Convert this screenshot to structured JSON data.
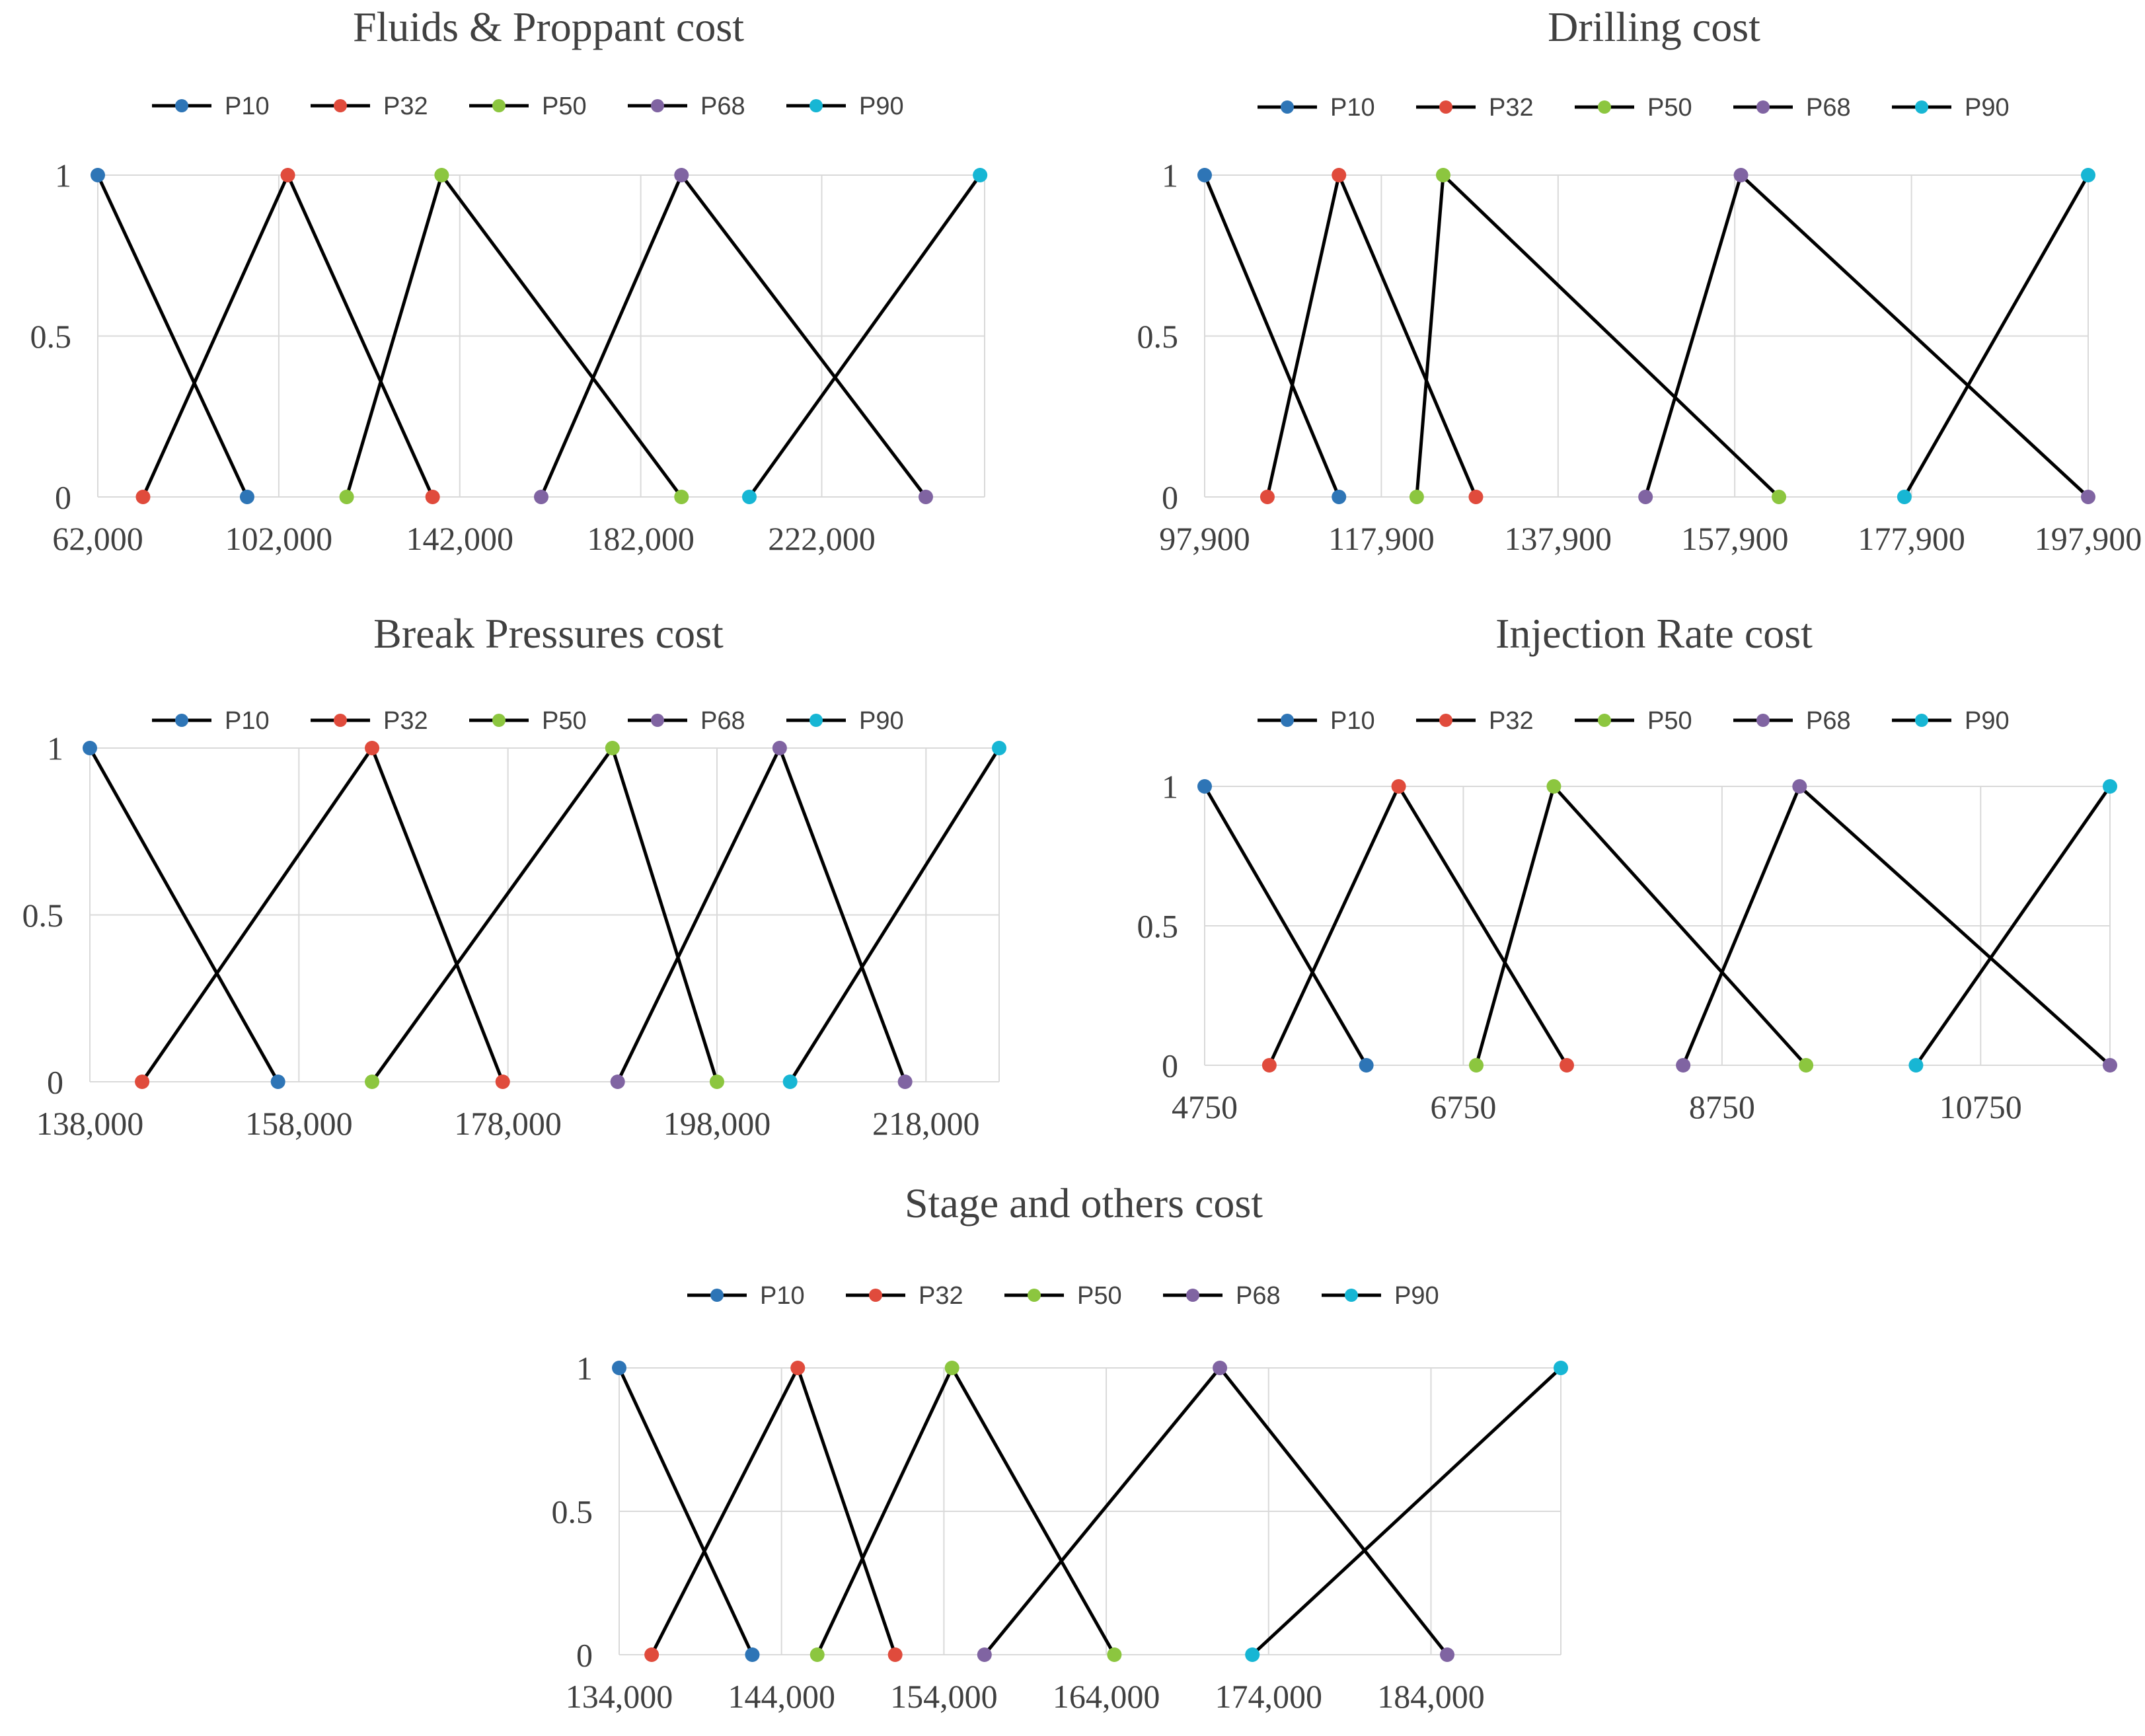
{
  "legend": [
    "P10",
    "P32",
    "P50",
    "P68",
    "P90"
  ],
  "colors": {
    "P10": "#2e75b6",
    "P32": "#e04b3c",
    "P50": "#8cc63f",
    "P68": "#8064a2",
    "P90": "#17b6d4"
  },
  "chart_data": [
    {
      "type": "line",
      "title": "Fluids & Proppant cost",
      "xlabel": "",
      "ylabel": "",
      "xlim": [
        62000,
        258000
      ],
      "ylim": [
        0,
        1
      ],
      "x_ticks": [
        62000,
        102000,
        142000,
        182000,
        222000
      ],
      "x_tick_labels": [
        "62,000",
        "102,000",
        "142,000",
        "182,000",
        "222,000"
      ],
      "y_ticks": [
        0,
        0.5,
        1
      ],
      "y_tick_labels": [
        "0",
        "0.5",
        "1"
      ],
      "grid": true,
      "legend_position": "top",
      "series": [
        {
          "name": "P10",
          "points": [
            [
              62000,
              1
            ],
            [
              95000,
              0
            ]
          ]
        },
        {
          "name": "P32",
          "points": [
            [
              72000,
              0
            ],
            [
              104000,
              1
            ],
            [
              136000,
              0
            ]
          ]
        },
        {
          "name": "P50",
          "points": [
            [
              117000,
              0
            ],
            [
              138000,
              1
            ],
            [
              191000,
              0
            ]
          ]
        },
        {
          "name": "P68",
          "points": [
            [
              160000,
              0
            ],
            [
              191000,
              1
            ],
            [
              245000,
              0
            ]
          ]
        },
        {
          "name": "P90",
          "points": [
            [
              206000,
              0
            ],
            [
              257000,
              1
            ]
          ]
        }
      ]
    },
    {
      "type": "line",
      "title": "Drilling cost",
      "xlabel": "",
      "ylabel": "",
      "xlim": [
        97900,
        197900
      ],
      "ylim": [
        0,
        1
      ],
      "x_ticks": [
        97900,
        117900,
        137900,
        157900,
        177900,
        197900
      ],
      "x_tick_labels": [
        "97,900",
        "117,900",
        "137,900",
        "157,900",
        "177,900",
        "197,900"
      ],
      "y_ticks": [
        0,
        0.5,
        1
      ],
      "y_tick_labels": [
        "0",
        "0.5",
        "1"
      ],
      "grid": true,
      "legend_position": "top",
      "series": [
        {
          "name": "P10",
          "points": [
            [
              97900,
              1
            ],
            [
              113100,
              0
            ]
          ]
        },
        {
          "name": "P32",
          "points": [
            [
              105000,
              0
            ],
            [
              113100,
              1
            ],
            [
              128600,
              0
            ]
          ]
        },
        {
          "name": "P50",
          "points": [
            [
              121900,
              0
            ],
            [
              124900,
              1
            ],
            [
              162900,
              0
            ]
          ]
        },
        {
          "name": "P68",
          "points": [
            [
              147800,
              0
            ],
            [
              158600,
              1
            ],
            [
              197900,
              0
            ]
          ]
        },
        {
          "name": "P90",
          "points": [
            [
              177100,
              0
            ],
            [
              197900,
              1
            ]
          ]
        }
      ]
    },
    {
      "type": "line",
      "title": "Break Pressures cost",
      "xlabel": "",
      "ylabel": "",
      "xlim": [
        138000,
        225000
      ],
      "ylim": [
        0,
        1
      ],
      "x_ticks": [
        138000,
        158000,
        178000,
        198000,
        218000
      ],
      "x_tick_labels": [
        "138,000",
        "158,000",
        "178,000",
        "198,000",
        "218,000"
      ],
      "y_ticks": [
        0,
        0.5,
        1
      ],
      "y_tick_labels": [
        "0",
        "0.5",
        "1"
      ],
      "grid": true,
      "legend_position": "top",
      "series": [
        {
          "name": "P10",
          "points": [
            [
              138000,
              1
            ],
            [
              156000,
              0
            ]
          ]
        },
        {
          "name": "P32",
          "points": [
            [
              143000,
              0
            ],
            [
              165000,
              1
            ],
            [
              177500,
              0
            ]
          ]
        },
        {
          "name": "P50",
          "points": [
            [
              165000,
              0
            ],
            [
              188000,
              1
            ],
            [
              198000,
              0
            ]
          ]
        },
        {
          "name": "P68",
          "points": [
            [
              188500,
              0
            ],
            [
              204000,
              1
            ],
            [
              216000,
              0
            ]
          ]
        },
        {
          "name": "P90",
          "points": [
            [
              205000,
              0
            ],
            [
              225000,
              1
            ]
          ]
        }
      ]
    },
    {
      "type": "line",
      "title": "Injection Rate cost",
      "xlabel": "",
      "ylabel": "",
      "xlim": [
        4750,
        11750
      ],
      "ylim": [
        0,
        1
      ],
      "x_ticks": [
        4750,
        6750,
        8750,
        10750
      ],
      "x_tick_labels": [
        "4750",
        "6750",
        "8750",
        "10750"
      ],
      "y_ticks": [
        0,
        0.5,
        1
      ],
      "y_tick_labels": [
        "0",
        "0.5",
        "1"
      ],
      "grid": true,
      "legend_position": "top",
      "series": [
        {
          "name": "P10",
          "points": [
            [
              4750,
              1
            ],
            [
              6000,
              0
            ]
          ]
        },
        {
          "name": "P32",
          "points": [
            [
              5250,
              0
            ],
            [
              6250,
              1
            ],
            [
              7550,
              0
            ]
          ]
        },
        {
          "name": "P50",
          "points": [
            [
              6850,
              0
            ],
            [
              7450,
              1
            ],
            [
              9400,
              0
            ]
          ]
        },
        {
          "name": "P68",
          "points": [
            [
              8450,
              0
            ],
            [
              9350,
              1
            ],
            [
              11750,
              0
            ]
          ]
        },
        {
          "name": "P90",
          "points": [
            [
              10250,
              0
            ],
            [
              11750,
              1
            ]
          ]
        }
      ]
    },
    {
      "type": "line",
      "title": "Stage and others cost",
      "xlabel": "",
      "ylabel": "",
      "xlim": [
        134000,
        192000
      ],
      "ylim": [
        0,
        1
      ],
      "x_ticks": [
        134000,
        144000,
        154000,
        164000,
        174000,
        184000
      ],
      "x_tick_labels": [
        "134,000",
        "144,000",
        "154,000",
        "164,000",
        "174,000",
        "184,000"
      ],
      "y_ticks": [
        0,
        0.5,
        1
      ],
      "y_tick_labels": [
        "0",
        "0.5",
        "1"
      ],
      "grid": true,
      "legend_position": "top",
      "series": [
        {
          "name": "P10",
          "points": [
            [
              134000,
              1
            ],
            [
              142200,
              0
            ]
          ]
        },
        {
          "name": "P32",
          "points": [
            [
              136000,
              0
            ],
            [
              145000,
              1
            ],
            [
              151000,
              0
            ]
          ]
        },
        {
          "name": "P50",
          "points": [
            [
              146200,
              0
            ],
            [
              154500,
              1
            ],
            [
              164500,
              0
            ]
          ]
        },
        {
          "name": "P68",
          "points": [
            [
              156500,
              0
            ],
            [
              171000,
              1
            ],
            [
              185000,
              0
            ]
          ]
        },
        {
          "name": "P90",
          "points": [
            [
              173000,
              0
            ],
            [
              192000,
              1
            ]
          ]
        }
      ]
    }
  ]
}
